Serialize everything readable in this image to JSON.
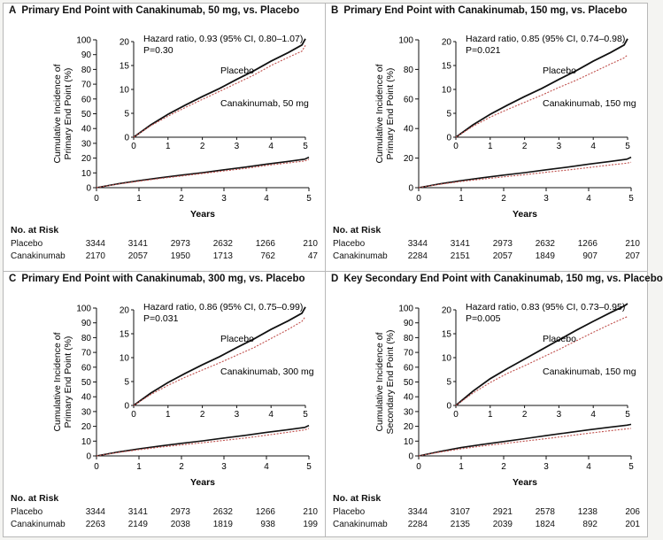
{
  "panels": [
    {
      "letter": "A",
      "title": "Primary End Point with Canakinumab, 50 mg, vs. Placebo",
      "ylabel_lines": [
        "Cumulative Incidence of",
        "Primary End Point (%)"
      ],
      "xlabel": "Years",
      "hr_text": "Hazard ratio, 0.93 (95% CI, 0.80–1.07)",
      "p_text": "P=0.30",
      "label_placebo": "Placebo",
      "label_drug": "Canakinumab, 50 mg",
      "risk_title": "No. at Risk",
      "risk": [
        {
          "label": "Placebo",
          "values": [
            "3344",
            "3141",
            "2973",
            "2632",
            "1266",
            "210"
          ]
        },
        {
          "label": "Canakinumab",
          "values": [
            "2170",
            "2057",
            "1950",
            "1713",
            "762",
            "47"
          ]
        }
      ]
    },
    {
      "letter": "B",
      "title": "Primary End Point with Canakinumab, 150 mg, vs. Placebo",
      "ylabel_lines": [
        "Cumulative Incidence of",
        "Primary End Point (%)"
      ],
      "xlabel": "Years",
      "hr_text": "Hazard ratio, 0.85 (95% CI, 0.74–0.98)",
      "p_text": "P=0.021",
      "label_placebo": "Placebo",
      "label_drug": "Canakinumab, 150 mg",
      "risk_title": "No. at Risk",
      "risk": [
        {
          "label": "Placebo",
          "values": [
            "3344",
            "3141",
            "2973",
            "2632",
            "1266",
            "210"
          ]
        },
        {
          "label": "Canakinumab",
          "values": [
            "2284",
            "2151",
            "2057",
            "1849",
            "907",
            "207"
          ]
        }
      ]
    },
    {
      "letter": "C",
      "title": "Primary End Point with Canakinumab, 300 mg, vs. Placebo",
      "ylabel_lines": [
        "Cumulative Incidence of",
        "Primary End Point (%)"
      ],
      "xlabel": "Years",
      "hr_text": "Hazard ratio, 0.86 (95% CI, 0.75–0.99)",
      "p_text": "P=0.031",
      "label_placebo": "Placebo",
      "label_drug": "Canakinumab, 300 mg",
      "risk_title": "No. at Risk",
      "risk": [
        {
          "label": "Placebo",
          "values": [
            "3344",
            "3141",
            "2973",
            "2632",
            "1266",
            "210"
          ]
        },
        {
          "label": "Canakinumab",
          "values": [
            "2263",
            "2149",
            "2038",
            "1819",
            "938",
            "199"
          ]
        }
      ]
    },
    {
      "letter": "D",
      "title": "Key Secondary End Point with Canakinumab, 150 mg, vs. Placebo",
      "ylabel_lines": [
        "Cumulative Incidence of",
        "Secondary End Point (%)"
      ],
      "xlabel": "Years",
      "hr_text": "Hazard ratio, 0.83 (95% CI, 0.73–0.95)",
      "p_text": "P=0.005",
      "label_placebo": "Placebo",
      "label_drug": "Canakinumab, 150 mg",
      "risk_title": "No. at Risk",
      "risk": [
        {
          "label": "Placebo",
          "values": [
            "3344",
            "3107",
            "2921",
            "2578",
            "1238",
            "206"
          ]
        },
        {
          "label": "Canakinumab",
          "values": [
            "2284",
            "2135",
            "2039",
            "1824",
            "892",
            "201"
          ]
        }
      ]
    }
  ],
  "colors": {
    "placebo": "#111111",
    "drug": "#c0504d",
    "axis": "#111111"
  },
  "chart_data": [
    {
      "type": "line",
      "title": "Primary End Point with Canakinumab, 50 mg, vs. Placebo",
      "xlabel": "Years",
      "ylabel": "Cumulative Incidence of Primary End Point (%)",
      "xlim": [
        0,
        5
      ],
      "ylim": [
        0,
        100
      ],
      "xticks": [
        0,
        1,
        2,
        3,
        4,
        5
      ],
      "yticks": [
        0,
        10,
        20,
        30,
        40,
        50,
        60,
        70,
        80,
        90,
        100
      ],
      "inset": {
        "xlim": [
          0,
          5
        ],
        "ylim": [
          0,
          20
        ],
        "yticks": [
          0,
          5,
          10,
          15,
          20
        ],
        "xticks": [
          0,
          1,
          2,
          3,
          4,
          5
        ]
      },
      "series": [
        {
          "name": "Placebo",
          "x": [
            0,
            0.5,
            1,
            1.5,
            2,
            2.5,
            3,
            3.5,
            4,
            4.5,
            4.9,
            5.0
          ],
          "y": [
            0,
            2.6,
            4.8,
            6.7,
            8.5,
            10.2,
            12.1,
            13.9,
            15.9,
            17.7,
            19.3,
            20.6
          ]
        },
        {
          "name": "Canakinumab, 50 mg",
          "x": [
            0,
            0.5,
            1,
            1.5,
            2,
            2.5,
            3,
            3.5,
            4,
            4.5,
            4.9,
            5.0
          ],
          "y": [
            0,
            2.4,
            4.4,
            6.2,
            7.9,
            9.6,
            11.3,
            13.0,
            15.0,
            16.7,
            18.0,
            19.2
          ]
        }
      ]
    },
    {
      "type": "line",
      "title": "Primary End Point with Canakinumab, 150 mg, vs. Placebo",
      "xlabel": "Years",
      "ylabel": "Cumulative Incidence of Primary End Point (%)",
      "xlim": [
        0,
        5
      ],
      "ylim": [
        0,
        100
      ],
      "xticks": [
        0,
        1,
        2,
        3,
        4,
        5
      ],
      "yticks": [
        0,
        20,
        40,
        60,
        80,
        100
      ],
      "inset": {
        "xlim": [
          0,
          5
        ],
        "ylim": [
          0,
          20
        ],
        "yticks": [
          0,
          5,
          10,
          15,
          20
        ],
        "xticks": [
          0,
          1,
          2,
          3,
          4,
          5
        ]
      },
      "series": [
        {
          "name": "Placebo",
          "x": [
            0,
            0.5,
            1,
            1.5,
            2,
            2.5,
            3,
            3.5,
            4,
            4.5,
            4.9,
            5.0
          ],
          "y": [
            0,
            2.6,
            4.8,
            6.7,
            8.5,
            10.2,
            12.1,
            13.9,
            15.9,
            17.7,
            19.3,
            20.6
          ]
        },
        {
          "name": "Canakinumab, 150 mg",
          "x": [
            0,
            0.5,
            1,
            1.5,
            2,
            2.5,
            3,
            3.5,
            4,
            4.5,
            4.9,
            5.0
          ],
          "y": [
            0,
            2.3,
            4.2,
            5.8,
            7.3,
            8.8,
            10.4,
            11.9,
            13.6,
            15.3,
            16.6,
            17.2
          ]
        }
      ]
    },
    {
      "type": "line",
      "title": "Primary End Point with Canakinumab, 300 mg, vs. Placebo",
      "xlabel": "Years",
      "ylabel": "Cumulative Incidence of Primary End Point (%)",
      "xlim": [
        0,
        5
      ],
      "ylim": [
        0,
        100
      ],
      "xticks": [
        0,
        1,
        2,
        3,
        4,
        5
      ],
      "yticks": [
        0,
        10,
        20,
        30,
        40,
        50,
        60,
        70,
        80,
        90,
        100
      ],
      "inset": {
        "xlim": [
          0,
          5
        ],
        "ylim": [
          0,
          20
        ],
        "yticks": [
          0,
          5,
          10,
          15,
          20
        ],
        "xticks": [
          0,
          1,
          2,
          3,
          4,
          5
        ]
      },
      "series": [
        {
          "name": "Placebo",
          "x": [
            0,
            0.5,
            1,
            1.5,
            2,
            2.5,
            3,
            3.5,
            4,
            4.5,
            4.9,
            5.0
          ],
          "y": [
            0,
            2.6,
            4.8,
            6.7,
            8.5,
            10.2,
            12.1,
            13.9,
            15.9,
            17.7,
            19.3,
            20.6
          ]
        },
        {
          "name": "Canakinumab, 300 mg",
          "x": [
            0,
            0.5,
            1,
            1.5,
            2,
            2.5,
            3,
            3.5,
            4,
            4.5,
            4.9,
            5.0
          ],
          "y": [
            0,
            2.3,
            4.2,
            5.9,
            7.4,
            8.9,
            10.5,
            12.1,
            14.0,
            15.9,
            17.6,
            18.6
          ]
        }
      ]
    },
    {
      "type": "line",
      "title": "Key Secondary End Point with Canakinumab, 150 mg, vs. Placebo",
      "xlabel": "Years",
      "ylabel": "Cumulative Incidence of Secondary End Point (%)",
      "xlim": [
        0,
        5
      ],
      "ylim": [
        0,
        100
      ],
      "xticks": [
        0,
        1,
        2,
        3,
        4,
        5
      ],
      "yticks": [
        0,
        10,
        20,
        30,
        40,
        50,
        60,
        70,
        80,
        90,
        100
      ],
      "inset": {
        "xlim": [
          0,
          5
        ],
        "ylim": [
          0,
          20
        ],
        "yticks": [
          0,
          5,
          10,
          15,
          20
        ],
        "xticks": [
          0,
          1,
          2,
          3,
          4,
          5
        ]
      },
      "series": [
        {
          "name": "Placebo",
          "x": [
            0,
            0.5,
            1,
            1.5,
            2,
            2.5,
            3,
            3.5,
            4,
            4.5,
            4.9,
            5.0
          ],
          "y": [
            0,
            3.0,
            5.6,
            7.7,
            9.7,
            11.7,
            13.7,
            15.7,
            17.6,
            19.4,
            20.8,
            21.3
          ]
        },
        {
          "name": "Canakinumab, 150 mg",
          "x": [
            0,
            0.5,
            1,
            1.5,
            2,
            2.5,
            3,
            3.5,
            4,
            4.5,
            4.9,
            5.0
          ],
          "y": [
            0,
            2.6,
            4.8,
            6.7,
            8.3,
            10.0,
            11.7,
            13.5,
            15.3,
            17.0,
            18.3,
            18.6
          ]
        }
      ]
    }
  ]
}
